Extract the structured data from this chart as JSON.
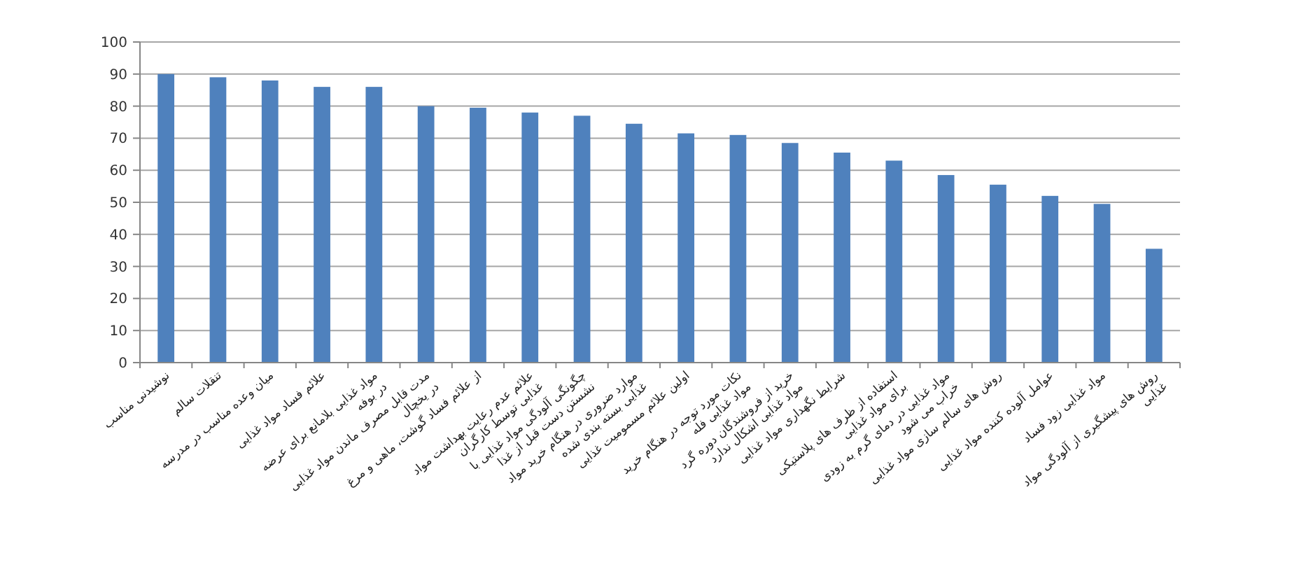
{
  "chart_data": {
    "type": "bar",
    "categories": [
      "نوشیدنی مناسب",
      "تنقلات سالم",
      "میان وعده مناسب در مدرسه",
      "علائم فساد مواد غذایی",
      "مواد غذایی بلامانع برای عرضه در بوفه",
      "مدت قابل مصرف ماندن مواد غذایی در یخچال",
      "از علائم فساد گوشت، ماهی و مرغ",
      "علائم عدم رعایت بهداشت مواد غذایی توسط کارگران",
      "چگونگی آلودگی مواد غذایی با نشستن دست قبل از غذا",
      "موارد ضروری در هنگام خرید مواد غذایی بسته بندی شده",
      "اولین علائم مسمومیت غذایی",
      "نکات مورد توجه در هنگام خرید مواد غذایی فله",
      "خرید از فروشندگان دوره گرد مواد غذایی اشکال ندارد",
      "شرایط نگهداری مواد غذایی",
      "استفاده از ظرف های پلاستیکی برای مواد غذایی",
      "مواد غذایی در دمای گرم به زودی خراب می شود",
      "روش های سالم سازی مواد غذایی",
      "عوامل آلوده کننده مواد غذایی",
      "مواد غذایی زود فساد",
      "روش های پیشگیری از آلودگی مواد غذایی"
    ],
    "values": [
      90,
      89,
      88,
      86,
      86,
      80,
      79.5,
      78,
      77,
      74.5,
      71.5,
      71,
      68.5,
      65.5,
      63,
      58.5,
      55.5,
      52,
      49.5,
      35.5
    ],
    "color": "#4f81bd",
    "ylim": [
      0,
      100
    ],
    "yticks": [
      0,
      10,
      20,
      30,
      40,
      50,
      60,
      70,
      80,
      90,
      100
    ],
    "grid": "y"
  }
}
